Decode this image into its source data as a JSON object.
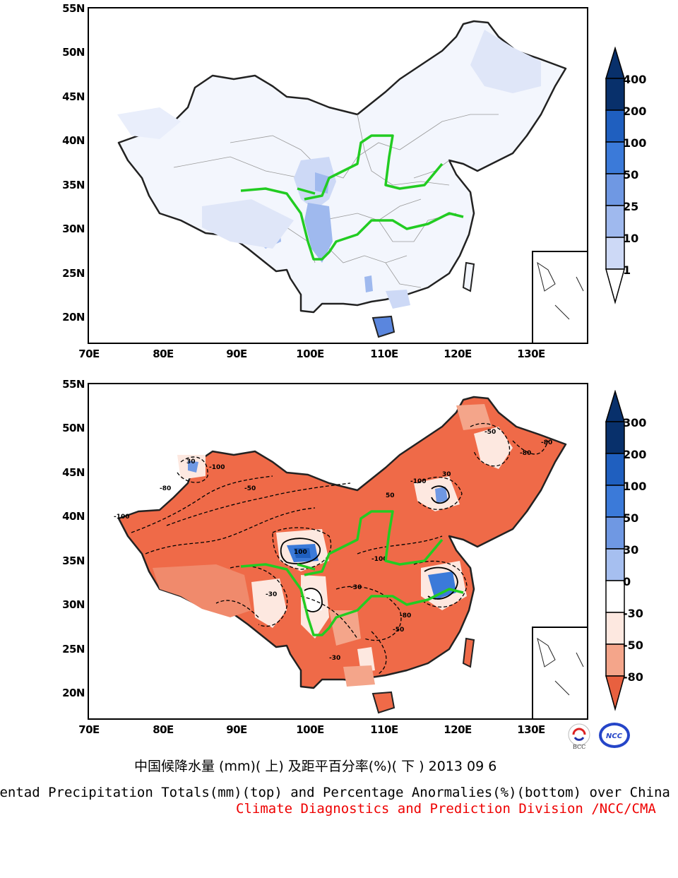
{
  "top_map": {
    "lat_ticks": [
      "55N",
      "50N",
      "45N",
      "40N",
      "35N",
      "30N",
      "25N",
      "20N"
    ],
    "lon_ticks": [
      "70E",
      "80E",
      "90E",
      "100E",
      "110E",
      "120E",
      "130E"
    ]
  },
  "bottom_map": {
    "lat_ticks": [
      "55N",
      "50N",
      "45N",
      "40N",
      "35N",
      "30N",
      "25N",
      "20N"
    ],
    "lon_ticks": [
      "70E",
      "80E",
      "90E",
      "100E",
      "110E",
      "120E",
      "130E"
    ]
  },
  "top_colorbar": {
    "labels": [
      "400",
      "200",
      "100",
      "50",
      "25",
      "10",
      "1"
    ],
    "colors": [
      "#08306b",
      "#1f5fbf",
      "#3b7ad9",
      "#6f98e3",
      "#9fb9ee",
      "#cdd9f6",
      "#ffffff"
    ]
  },
  "bottom_colorbar": {
    "labels": [
      "300",
      "200",
      "100",
      "50",
      "30",
      "0",
      "-30",
      "-50",
      "-80"
    ],
    "colors": [
      "#08306b",
      "#1f5fbf",
      "#3b7ad9",
      "#6f98e3",
      "#a6bff0",
      "#ffffff",
      "#fde8e0",
      "#f4a58a",
      "#ef8064",
      "#e8603f"
    ]
  },
  "captions": {
    "cn": "中国候降水量 (mm)( 上) 及距平百分率(%)( 下 ) 2013 09 6",
    "en": "Pentad Precipitation Totals(mm)(top) and Percentage Anormalies(%)(bottom) over China",
    "org": "Climate Diagnostics and Prediction Division /NCC/CMA"
  },
  "logos": {
    "bcc": "BCC",
    "ncc": "NCC"
  },
  "contour_labels": [
    "-100",
    "-80",
    "-50",
    "-30",
    "30",
    "50",
    "100",
    "-100",
    "-80",
    "-50",
    "-30",
    "-100",
    "-80",
    "-50",
    "-30",
    "30",
    "-100",
    "-80"
  ],
  "colors": {
    "river": "#22cc22",
    "border": "#222222",
    "anomaly_main": "#ef6a48",
    "precip_light": "#dfe6f8"
  }
}
